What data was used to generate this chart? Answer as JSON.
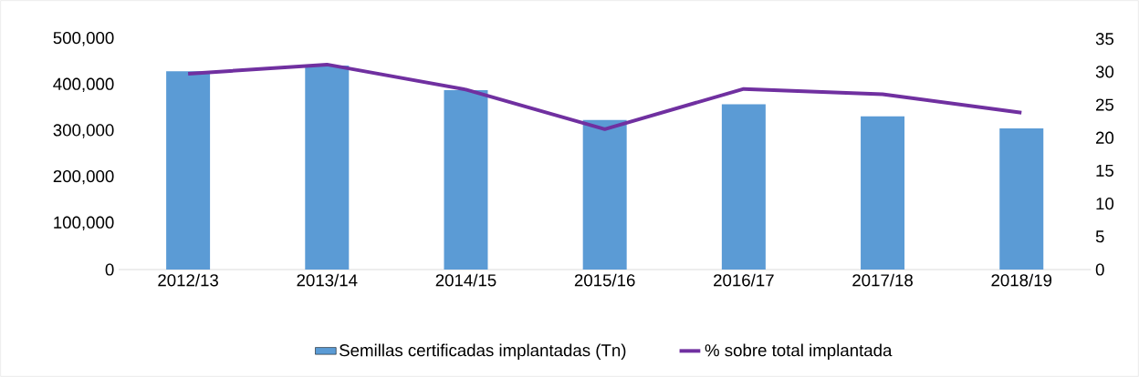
{
  "chart_data": {
    "type": "bar",
    "categories": [
      "2012/13",
      "2013/14",
      "2014/15",
      "2015/16",
      "2016/17",
      "2017/18",
      "2018/19"
    ],
    "series": [
      {
        "name": "Semillas certificadas implantadas (Tn)",
        "color": "#5b9bd5",
        "values": [
          430000,
          442000,
          389000,
          324000,
          358000,
          332000,
          306000
        ]
      },
      {
        "name": "% sobre total implantada",
        "type": "line",
        "color": "#7030a0",
        "axis": "y2",
        "values": [
          29.7,
          31.1,
          27.3,
          21.3,
          27.4,
          26.6,
          23.8
        ]
      }
    ],
    "ylim": [
      0,
      500000
    ],
    "yticks": [
      0,
      {
        "value": 100000,
        "label": "100,000"
      },
      {
        "value": 200000,
        "label": "200,000"
      },
      {
        "value": 300000,
        "label": "300,000"
      },
      {
        "value": 400000,
        "label": "400,000"
      },
      {
        "value": 500000,
        "label": "500,000"
      }
    ],
    "y2lim": [
      0,
      35
    ],
    "y2ticks": [
      0,
      5,
      10,
      15,
      20,
      25,
      30,
      35
    ],
    "legend": "bottom",
    "marker": "none"
  }
}
